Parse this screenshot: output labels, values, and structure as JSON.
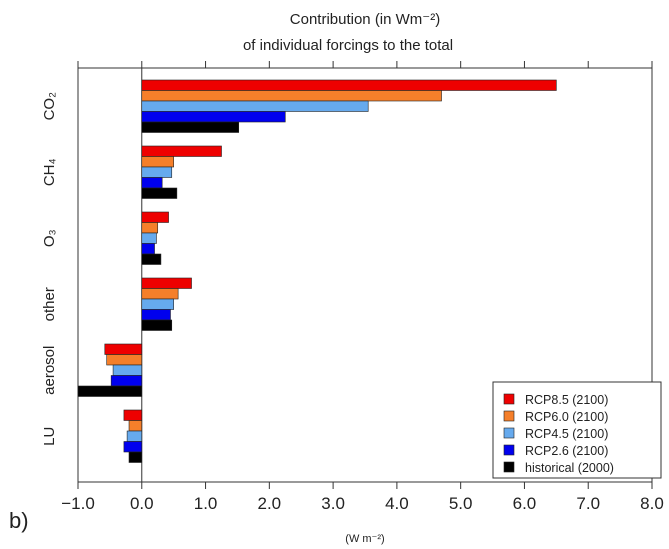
{
  "figure": {
    "title_line1": "Contribution (in Wm⁻²)",
    "title_line2": "of individual forcings to the total",
    "panel_label": "b)",
    "x_unit_label": "(W m⁻²)"
  },
  "chart_data": {
    "type": "bar",
    "orientation": "horizontal",
    "categories": [
      "CO₂",
      "CH₄",
      "O₃",
      "other",
      "aerosol",
      "LU"
    ],
    "series": [
      {
        "name": "RCP8.5 (2100)",
        "color": "#ee0000",
        "values": [
          6.5,
          1.25,
          0.42,
          0.78,
          -0.58,
          -0.28
        ]
      },
      {
        "name": "RCP6.0 (2100)",
        "color": "#f57f2a",
        "values": [
          4.7,
          0.5,
          0.25,
          0.57,
          -0.55,
          -0.2
        ]
      },
      {
        "name": "RCP4.5 (2100)",
        "color": "#66aaee",
        "values": [
          3.55,
          0.47,
          0.23,
          0.5,
          -0.45,
          -0.23
        ]
      },
      {
        "name": "RCP2.6 (2100)",
        "color": "#0000ee",
        "values": [
          2.25,
          0.32,
          0.2,
          0.45,
          -0.48,
          -0.28
        ]
      },
      {
        "name": "historical (2000)",
        "color": "#000000",
        "values": [
          1.52,
          0.55,
          0.3,
          0.47,
          -1.0,
          -0.2
        ]
      }
    ],
    "xlim": [
      -1.0,
      8.0
    ],
    "x_ticks": [
      -1.0,
      0.0,
      1.0,
      2.0,
      3.0,
      4.0,
      5.0,
      6.0,
      7.0,
      8.0
    ],
    "x_tick_labels": [
      "−1.0",
      "0.0",
      "1.0",
      "2.0",
      "3.0",
      "4.0",
      "5.0",
      "6.0",
      "7.0",
      "8.0"
    ],
    "legend_position": "bottom-right",
    "grid": false
  }
}
